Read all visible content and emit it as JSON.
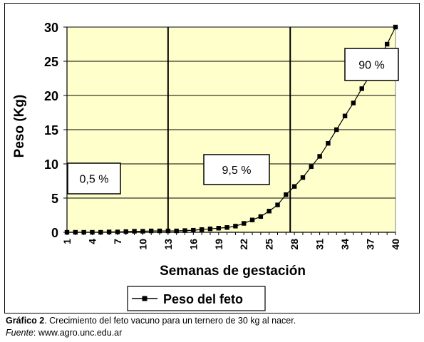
{
  "chart_data": {
    "type": "line",
    "xlabel": "Semanas de gestación",
    "ylabel": "Peso (Kg)",
    "ylim": [
      0,
      30
    ],
    "yticks": [
      0,
      5,
      10,
      15,
      20,
      25,
      30
    ],
    "xlim": [
      1,
      40
    ],
    "xticks": [
      1,
      4,
      7,
      10,
      13,
      16,
      19,
      22,
      25,
      28,
      31,
      34,
      37,
      40
    ],
    "grid": true,
    "legend_position": "bottom",
    "colors": {
      "plot_bg": "#ffffcc",
      "series": "#000000",
      "grid": "#000000"
    },
    "series": [
      {
        "name": "Peso del feto",
        "x": [
          1,
          2,
          3,
          4,
          5,
          6,
          7,
          8,
          9,
          10,
          11,
          12,
          13,
          14,
          15,
          16,
          17,
          18,
          19,
          20,
          21,
          22,
          23,
          24,
          25,
          26,
          27,
          28,
          29,
          30,
          31,
          32,
          33,
          34,
          35,
          36,
          37,
          39,
          40
        ],
        "values": [
          0,
          0,
          0,
          0,
          0,
          0.05,
          0.05,
          0.1,
          0.15,
          0.15,
          0.2,
          0.2,
          0.2,
          0.2,
          0.25,
          0.3,
          0.4,
          0.5,
          0.6,
          0.7,
          0.9,
          1.3,
          1.8,
          2.3,
          3.1,
          4.0,
          5.5,
          6.7,
          8.0,
          9.6,
          11.1,
          13.0,
          15.0,
          17.0,
          18.9,
          21.0,
          23.0,
          27.5,
          30.0
        ]
      }
    ],
    "vlines": [
      13,
      27.5
    ],
    "annotations": [
      "0,5 %",
      "9,5 %",
      "90 %"
    ]
  },
  "caption": {
    "label": "Gráfico 2",
    "text": ". Crecimiento del feto vacuno para un ternero de 30 kg al nacer.",
    "source_label": "Fuente",
    "source_text": ": www.agro.unc.edu.ar"
  }
}
